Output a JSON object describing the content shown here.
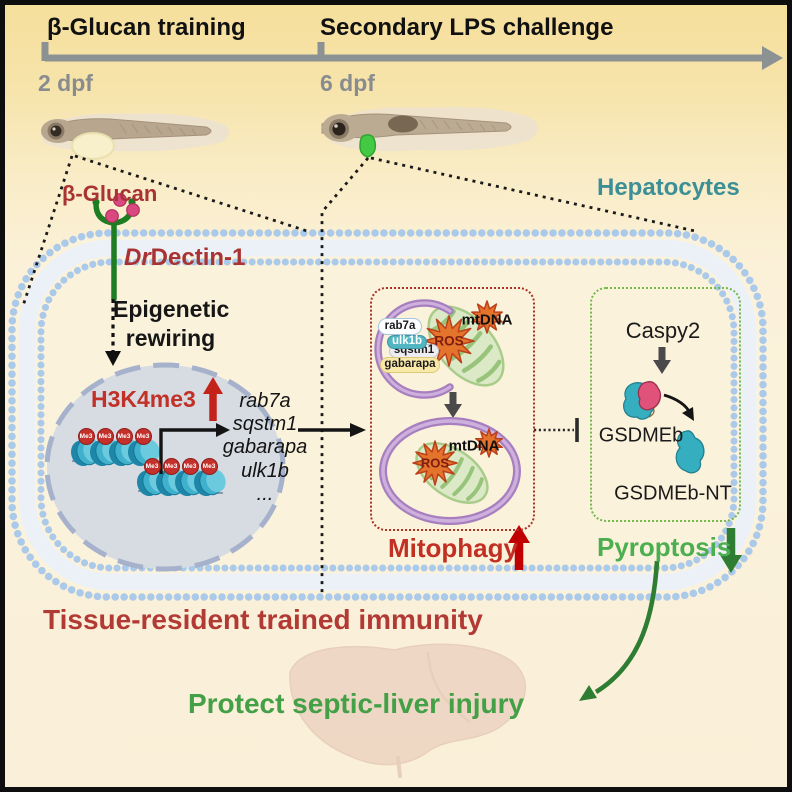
{
  "timeline": {
    "phase1": "β-Glucan training",
    "phase2": "Secondary LPS challenge",
    "t1": "2 dpf",
    "t2": "6 dpf"
  },
  "cell": {
    "hepatocytes": "Hepatocytes"
  },
  "training": {
    "beta_glucan": "β-Glucan",
    "dectin_prefix": "Dr",
    "dectin_rest": "Dectin-1",
    "epigenetic_line1": "Epigenetic",
    "epigenetic_line2": "rewiring",
    "h3k4me3": "H3K4me3",
    "me3": "Me3",
    "genes": [
      "rab7a",
      "sqstm1",
      "gabarapa",
      "ulk1b",
      "..."
    ]
  },
  "mitophagy": {
    "title": "Mitophagy",
    "ros": "ROS",
    "mtdna": "mtDNA",
    "pills": [
      {
        "label": "rab7a",
        "bg": "#FDFEFF",
        "fg": "#1a1a1a",
        "border": "#A9C4DE"
      },
      {
        "label": "sqstm1",
        "bg": "#EDEDF1",
        "fg": "#1a1a1a",
        "border": "#C2C5CF"
      },
      {
        "label": "gabarapa",
        "bg": "#F8E9A9",
        "fg": "#1a1a1a",
        "border": "#DBC87B"
      },
      {
        "label": "ulk1b",
        "bg": "#52B5C2",
        "fg": "#ffffff",
        "border": "#3D98A6"
      }
    ]
  },
  "pyroptosis": {
    "title": "Pyroptosis",
    "caspy2": "Caspy2",
    "gsdmeb": "GSDMEb",
    "gsdmeb_nt": "GSDMEb-NT"
  },
  "footer": {
    "tissue": "Tissue-resident trained immunity",
    "protect": "Protect septic-liver injury"
  },
  "colors": {
    "dark_red_text": "#A93232",
    "bright_red": "#C4231B",
    "mitophagy_red": "#C22F23",
    "green_text": "#4BAE4F",
    "dark_green": "#2E7D32",
    "teal_text": "#3C8F96",
    "timeline_gray": "#8C9194",
    "membrane_blue": "#ABC9E9",
    "autophagosome_purple": "#A87FBE",
    "mito_green": "#DCE9C6",
    "star_orange": "#E4732C",
    "gsdmeb_teal": "#35AEBF",
    "gsdmeb_pink": "#E0527A",
    "nucleus_fill": "#D7DBE2"
  }
}
